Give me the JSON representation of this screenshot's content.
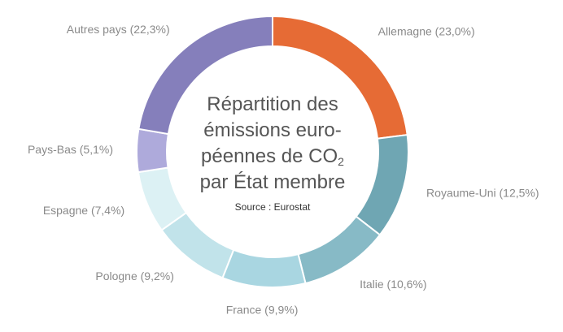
{
  "chart_data": {
    "type": "pie",
    "title_lines": [
      "Répartition des",
      "émissions euro-",
      "péennes de CO",
      "par État membre"
    ],
    "title_subscript": "2",
    "source": "Source : Eurostat",
    "slices": [
      {
        "label": "Allemagne (23,0%)",
        "value": 23.0,
        "color": "#e66b35"
      },
      {
        "label": "Royaume-Uni (12,5%)",
        "value": 12.5,
        "color": "#6fa6b3"
      },
      {
        "label": "Italie (10,6%)",
        "value": 10.6,
        "color": "#87bac6"
      },
      {
        "label": "France (9,9%)",
        "value": 9.9,
        "color": "#a9d6e1"
      },
      {
        "label": "Pologne (9,2%)",
        "value": 9.2,
        "color": "#c1e3ea"
      },
      {
        "label": "Espagne (7,4%)",
        "value": 7.4,
        "color": "#dcf1f4"
      },
      {
        "label": "Pays-Bas (5,1%)",
        "value": 5.1,
        "color": "#aeaadb"
      },
      {
        "label": "Autres pays (22,3%)",
        "value": 22.3,
        "color": "#857fbb"
      }
    ]
  }
}
